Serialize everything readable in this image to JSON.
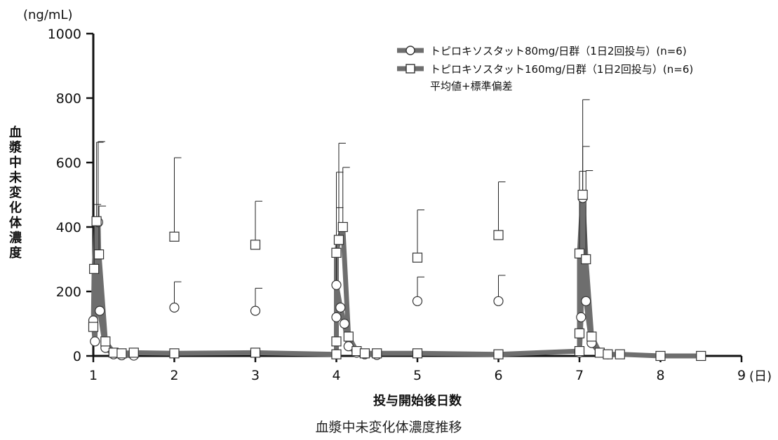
{
  "chart_data": {
    "type": "line",
    "unit_label": "(ng/mL)",
    "ylabel": "血漿中未変化体濃度",
    "xlabel": "投与開始後日数",
    "x_unit_label": "(日)",
    "caption": "血漿中未変化体濃度推移",
    "xlim": [
      1,
      9
    ],
    "ylim": [
      0,
      1000
    ],
    "x_ticks": [
      1,
      2,
      3,
      4,
      5,
      6,
      7,
      8,
      9
    ],
    "y_ticks": [
      0,
      200,
      400,
      600,
      800,
      1000
    ],
    "legend_note": "平均値+標準偏差",
    "legend_position": "top-right",
    "series": [
      {
        "name": "トピロキソスタット80mg/日群（1日2回投与）(n=6)",
        "marker": "circle",
        "color": "#6e6e6e",
        "points": [
          {
            "x": 1.0,
            "y": 110,
            "sd": 0
          },
          {
            "x": 1.02,
            "y": 45,
            "sd": 0
          },
          {
            "x": 1.06,
            "y": 415,
            "sd": 250
          },
          {
            "x": 1.08,
            "y": 140,
            "sd": 0
          },
          {
            "x": 1.15,
            "y": 25,
            "sd": 0
          },
          {
            "x": 1.25,
            "y": 5,
            "sd": 0
          },
          {
            "x": 1.35,
            "y": 2,
            "sd": 0
          },
          {
            "x": 1.5,
            "y": 1,
            "sd": 0
          },
          {
            "x": 2.0,
            "y": 150,
            "sd": 80,
            "connected": false
          },
          {
            "x": 3.0,
            "y": 140,
            "sd": 70,
            "connected": false
          },
          {
            "x": 4.0,
            "y": 120,
            "sd": 0,
            "new_segment": true
          },
          {
            "x": 4.0,
            "y": 220,
            "sd": 240
          },
          {
            "x": 4.05,
            "y": 150,
            "sd": 0
          },
          {
            "x": 4.1,
            "y": 100,
            "sd": 0
          },
          {
            "x": 4.15,
            "y": 30,
            "sd": 0
          },
          {
            "x": 4.25,
            "y": 10,
            "sd": 0
          },
          {
            "x": 4.35,
            "y": 5,
            "sd": 0
          },
          {
            "x": 4.5,
            "y": 3,
            "sd": 0
          },
          {
            "x": 5.0,
            "y": 170,
            "sd": 75,
            "connected": false
          },
          {
            "x": 6.0,
            "y": 170,
            "sd": 80,
            "connected": false
          },
          {
            "x": 7.0,
            "y": 10,
            "sd": 0,
            "new_segment": true
          },
          {
            "x": 7.02,
            "y": 120,
            "sd": 0
          },
          {
            "x": 7.04,
            "y": 490,
            "sd": 160
          },
          {
            "x": 7.08,
            "y": 170,
            "sd": 0
          },
          {
            "x": 7.15,
            "y": 40,
            "sd": 0
          },
          {
            "x": 7.25,
            "y": 10,
            "sd": 0
          },
          {
            "x": 7.35,
            "y": 5,
            "sd": 0
          }
        ]
      },
      {
        "name": "トピロキソスタット160mg/日群（1日2回投与）(n=6)",
        "marker": "square",
        "color": "#6e6e6e",
        "points": [
          {
            "x": 1.0,
            "y": 90,
            "sd": 0
          },
          {
            "x": 1.01,
            "y": 270,
            "sd": 200
          },
          {
            "x": 1.04,
            "y": 418,
            "sd": 245
          },
          {
            "x": 1.07,
            "y": 315,
            "sd": 150
          },
          {
            "x": 1.15,
            "y": 45,
            "sd": 0
          },
          {
            "x": 1.25,
            "y": 10,
            "sd": 0
          },
          {
            "x": 1.35,
            "y": 8,
            "sd": 0
          },
          {
            "x": 1.5,
            "y": 10,
            "sd": 0
          },
          {
            "x": 2.0,
            "y": 8,
            "sd": 0
          },
          {
            "x": 3.0,
            "y": 10,
            "sd": 0
          },
          {
            "x": 4.0,
            "y": 5,
            "sd": 0
          },
          {
            "x": 4.0,
            "y": 45,
            "sd": 0
          },
          {
            "x": 4.0,
            "y": 320,
            "sd": 250
          },
          {
            "x": 4.03,
            "y": 360,
            "sd": 300
          },
          {
            "x": 4.08,
            "y": 400,
            "sd": 185
          },
          {
            "x": 4.15,
            "y": 60,
            "sd": 0
          },
          {
            "x": 4.25,
            "y": 15,
            "sd": 0
          },
          {
            "x": 4.35,
            "y": 8,
            "sd": 0
          },
          {
            "x": 4.5,
            "y": 8,
            "sd": 0
          },
          {
            "x": 5.0,
            "y": 8,
            "sd": 0
          },
          {
            "x": 6.0,
            "y": 5,
            "sd": 0
          },
          {
            "x": 7.0,
            "y": 15,
            "sd": 0
          },
          {
            "x": 7.0,
            "y": 70,
            "sd": 0
          },
          {
            "x": 7.0,
            "y": 318,
            "sd": 255
          },
          {
            "x": 7.04,
            "y": 500,
            "sd": 295
          },
          {
            "x": 7.08,
            "y": 300,
            "sd": 275
          },
          {
            "x": 7.15,
            "y": 60,
            "sd": 0
          },
          {
            "x": 7.25,
            "y": 10,
            "sd": 0
          },
          {
            "x": 7.35,
            "y": 5,
            "sd": 0
          },
          {
            "x": 7.5,
            "y": 5,
            "sd": 0
          },
          {
            "x": 8.0,
            "y": 0,
            "sd": 0
          },
          {
            "x": 8.5,
            "y": 0,
            "sd": 0
          }
        ],
        "unconnected_points": [
          {
            "x": 2.0,
            "y": 370,
            "sd": 245
          },
          {
            "x": 3.0,
            "y": 345,
            "sd": 135
          },
          {
            "x": 5.0,
            "y": 305,
            "sd": 148
          },
          {
            "x": 6.0,
            "y": 375,
            "sd": 165
          }
        ]
      }
    ]
  }
}
